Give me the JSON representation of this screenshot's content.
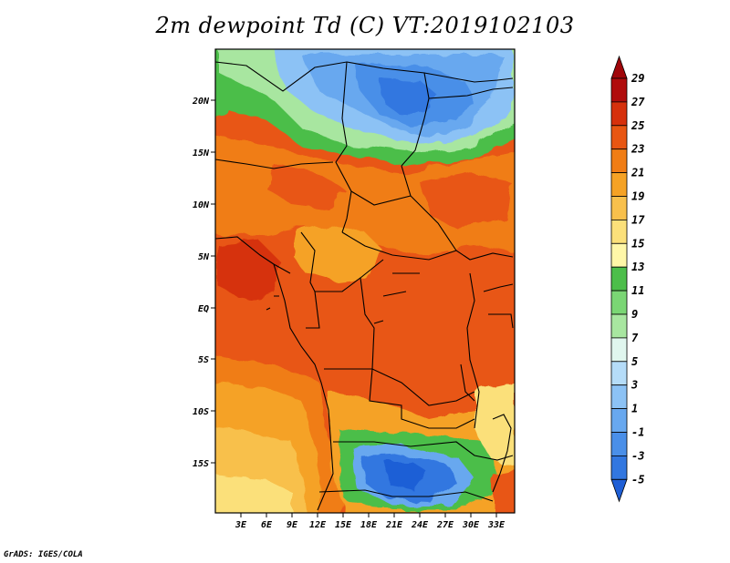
{
  "title": "2m dewpoint Td (C) VT:2019102103",
  "credit": "GrADS: IGES/COLA",
  "map": {
    "lat_labels": [
      "20N",
      "15N",
      "10N",
      "5N",
      "EQ",
      "5S",
      "10S",
      "15S"
    ],
    "lon_labels": [
      "3E",
      "6E",
      "9E",
      "12E",
      "15E",
      "18E",
      "21E",
      "24E",
      "27E",
      "30E",
      "33E"
    ]
  },
  "colorbar": {
    "levels": [
      "-5",
      "-3",
      "-1",
      "1",
      "3",
      "5",
      "7",
      "9",
      "11",
      "13",
      "15",
      "17",
      "19",
      "21",
      "23",
      "25",
      "27",
      "29"
    ],
    "colors": [
      "#1f5fd6",
      "#3277e0",
      "#4a8fe8",
      "#68a8ef",
      "#8cc2f5",
      "#b5dcf8",
      "#e0f6ee",
      "#a8e6a0",
      "#7ad674",
      "#4cbe4a",
      "#fff7a8",
      "#fbe07a",
      "#f8c04c",
      "#f5a225",
      "#f07d15",
      "#e85612",
      "#d6300c",
      "#b00c0c",
      "#a0060a"
    ],
    "arrow_bottom_color": "#1f5fd6",
    "arrow_top_color": "#a0060a"
  }
}
